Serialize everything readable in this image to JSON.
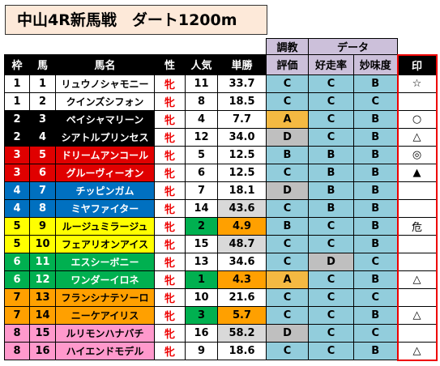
{
  "title": "中山4R新馬戦　ダート1200m",
  "table": {
    "group_headers": [
      "調教",
      "データ"
    ],
    "headers": [
      "枠",
      "馬",
      "馬名",
      "性",
      "人気",
      "単勝",
      "評価",
      "好走率",
      "妙味度",
      "印"
    ],
    "rows": [
      [
        1,
        1,
        "リュウノシャモニー",
        "牝",
        11,
        "33.7",
        "C",
        "C",
        "B",
        "☆"
      ],
      [
        1,
        2,
        "クインズシフォン",
        "牝",
        8,
        "18.5",
        "C",
        "C",
        "C",
        null
      ],
      [
        2,
        3,
        "ペイシャマリーン",
        "牝",
        4,
        "7.7",
        "A",
        "C",
        "B",
        "○"
      ],
      [
        2,
        4,
        "シアトルプリンセス",
        "牝",
        12,
        "34.0",
        "D",
        "C",
        "B",
        "△"
      ],
      [
        3,
        5,
        "ドリームアンコール",
        "牝",
        5,
        "12.5",
        "B",
        "B",
        "B",
        "◎"
      ],
      [
        3,
        6,
        "グルーヴィーオン",
        "牝",
        6,
        "12.5",
        "C",
        "B",
        "B",
        "▲"
      ],
      [
        4,
        7,
        "チッピンガム",
        "牝",
        7,
        "18.1",
        "D",
        "B",
        "B",
        null
      ],
      [
        4,
        8,
        "ミヤファイター",
        "牝",
        14,
        "43.6",
        "C",
        "B",
        "B",
        null
      ],
      [
        5,
        9,
        "ルージュミラージュ",
        "牝",
        2,
        "4.9",
        "B",
        "C",
        "B",
        "危"
      ],
      [
        5,
        10,
        "フェアリオンアイス",
        "牝",
        15,
        "48.7",
        "C",
        "C",
        "B",
        null
      ],
      [
        6,
        11,
        "エスシーボニー",
        "牝",
        13,
        "34.6",
        "C",
        "D",
        "C",
        null
      ],
      [
        6,
        12,
        "ワンダーイロネ",
        "牝",
        1,
        "4.3",
        "A",
        "C",
        "B",
        "△"
      ],
      [
        7,
        13,
        "フランシナテソーロ",
        "牝",
        10,
        "21.6",
        "C",
        "C",
        "C",
        null
      ],
      [
        7,
        14,
        "ニーケアイリス",
        "牝",
        3,
        "5.7",
        "C",
        "C",
        "B",
        "△"
      ],
      [
        8,
        15,
        "ルリモンハナバチ",
        "牝",
        16,
        "58.2",
        "D",
        "C",
        "C",
        null
      ],
      [
        8,
        16,
        "ハイエンドモデル",
        "牝",
        9,
        "18.6",
        "C",
        "C",
        "B",
        "△"
      ]
    ]
  }
}
